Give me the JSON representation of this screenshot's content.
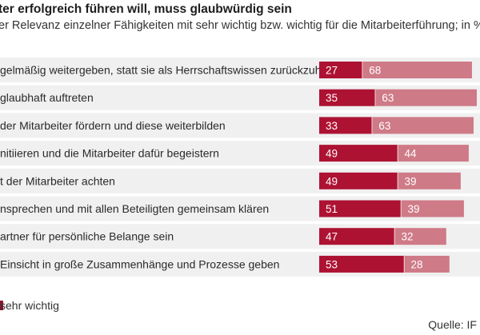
{
  "title": "ter erfolgreich führen will, muss glaubwürdig sein",
  "subtitle": "er Relevanz einzelner Fähigkeiten mit sehr wichtig bzw. wichtig für die Mitarbeiterführung; in %",
  "legend_text": "sehr wichtig",
  "source": "Quelle: IF",
  "colors": {
    "dark": "#ad1233",
    "light": "#cf7a87",
    "row_bg": "#f0f0f0",
    "divider": "#ffffff",
    "legend_dark": "#8f1330"
  },
  "chart_data": {
    "type": "bar",
    "stacked": true,
    "orientation": "horizontal",
    "categories": [
      "gelmäßig weitergeben, statt sie als Herrschaftswissen zurückzuhalten",
      "glaubhaft auftreten",
      "der Mitarbeiter fördern und diese weiterbilden",
      "nitiieren und die Mitarbeiter dafür begeistern",
      "t der Mitarbeiter achten",
      "nsprechen und mit allen Beteiligten gemeinsam klären",
      "artner für persönliche Belange sein",
      "Einsicht in große Zusammenhänge und Prozesse geben"
    ],
    "series": [
      {
        "name": "sehr wichtig",
        "values": [
          27,
          35,
          33,
          49,
          49,
          51,
          47,
          53
        ]
      },
      {
        "name": "",
        "values": [
          68,
          63,
          63,
          44,
          39,
          39,
          32,
          28
        ]
      }
    ],
    "xlim": [
      0,
      100
    ],
    "legend": "bottom-left"
  }
}
